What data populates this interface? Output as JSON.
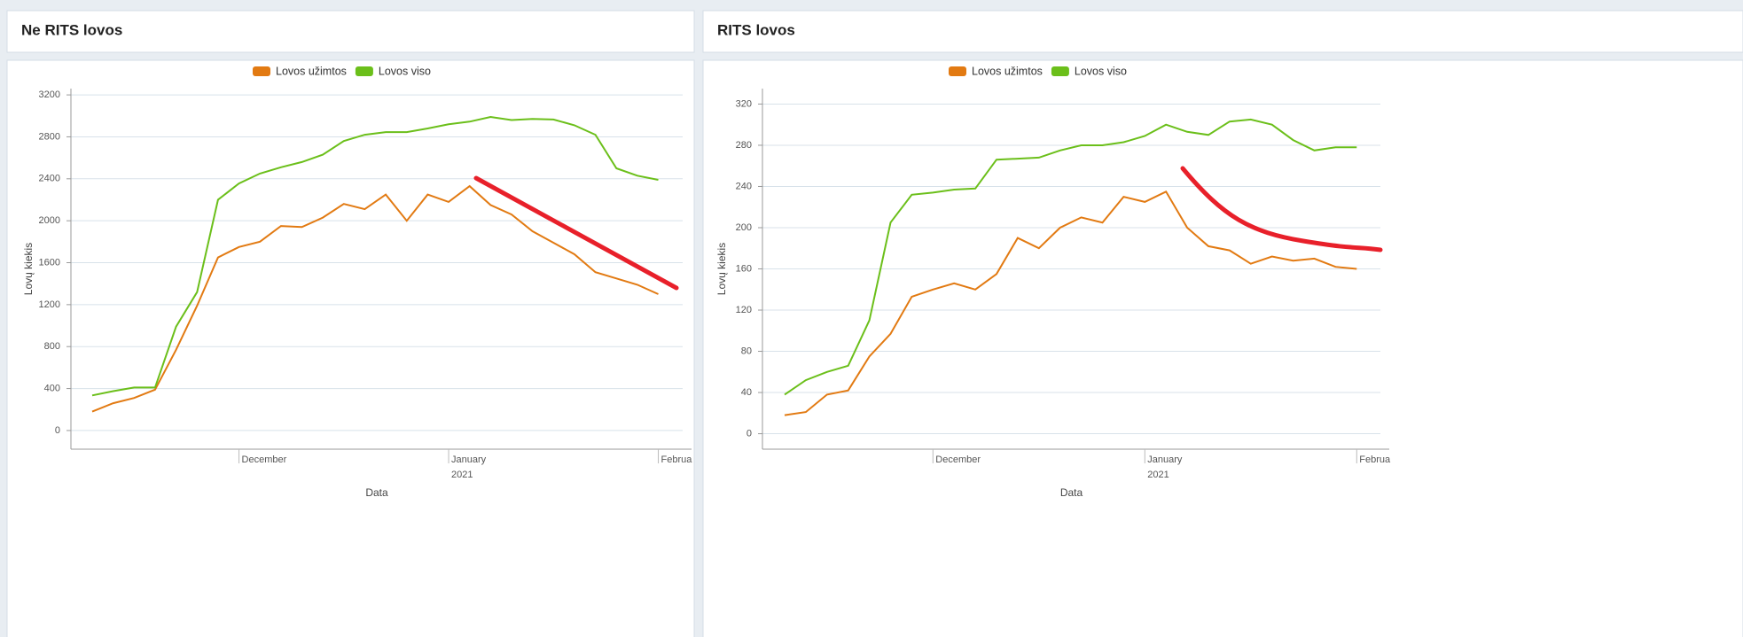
{
  "chart_data": [
    {
      "type": "line",
      "title": "Ne RITS lovos",
      "x_label": "Data",
      "y_label": "Lovų kiekis",
      "categories": [
        null,
        null,
        null,
        null,
        null,
        null,
        null,
        "December",
        null,
        null,
        null,
        null,
        null,
        null,
        null,
        null,
        null,
        "January",
        null,
        null,
        null,
        null,
        null,
        null,
        null,
        null,
        null,
        "Februa"
      ],
      "year_label": "2021",
      "series": [
        {
          "name": "Lovos užimtos",
          "color": "#e27a12",
          "values": [
            180,
            260,
            310,
            390,
            770,
            1190,
            1650,
            1750,
            1800,
            1950,
            1940,
            2030,
            2160,
            2110,
            2250,
            2000,
            2250,
            2180,
            2330,
            2150,
            2060,
            1900,
            1790,
            1680,
            1510,
            1450,
            1390,
            1300
          ]
        },
        {
          "name": "Lovos viso",
          "color": "#6bbf1a",
          "values": [
            335,
            375,
            410,
            410,
            990,
            1320,
            2200,
            2355,
            2450,
            2510,
            2560,
            2630,
            2760,
            2820,
            2845,
            2845,
            2880,
            2920,
            2945,
            2990,
            2960,
            2970,
            2965,
            2910,
            2820,
            2500,
            2430,
            2390
          ]
        }
      ],
      "ylim": [
        -178,
        3260
      ],
      "yticks": [
        0,
        400,
        800,
        1200,
        1600,
        2000,
        2400,
        2800,
        3200
      ],
      "grid": true,
      "legend": "top"
    },
    {
      "type": "line",
      "title": "RITS lovos",
      "x_label": "Data",
      "y_label": "Lovų kiekis",
      "categories": [
        null,
        null,
        null,
        null,
        null,
        null,
        null,
        "December",
        null,
        null,
        null,
        null,
        null,
        null,
        null,
        null,
        null,
        "January",
        null,
        null,
        null,
        null,
        null,
        null,
        null,
        null,
        null,
        "Februa"
      ],
      "year_label": "2021",
      "series": [
        {
          "name": "Lovos užimtos",
          "color": "#e27a12",
          "values": [
            18,
            21,
            38,
            42,
            75,
            97,
            133,
            140,
            146,
            140,
            155,
            190,
            180,
            200,
            210,
            205,
            230,
            225,
            235,
            200,
            182,
            178,
            165,
            172,
            168,
            170,
            162,
            160
          ]
        },
        {
          "name": "Lovos viso",
          "color": "#6bbf1a",
          "values": [
            38,
            52,
            60,
            66,
            110,
            205,
            232,
            234,
            237,
            238,
            266,
            267,
            268,
            275,
            280,
            280,
            283,
            289,
            300,
            293,
            290,
            303,
            305,
            300,
            285,
            275,
            278,
            278
          ]
        }
      ],
      "ylim": [
        -15,
        335
      ],
      "yticks": [
        0,
        40,
        80,
        120,
        160,
        200,
        240,
        280,
        320
      ],
      "grid": true,
      "legend": "top"
    }
  ]
}
